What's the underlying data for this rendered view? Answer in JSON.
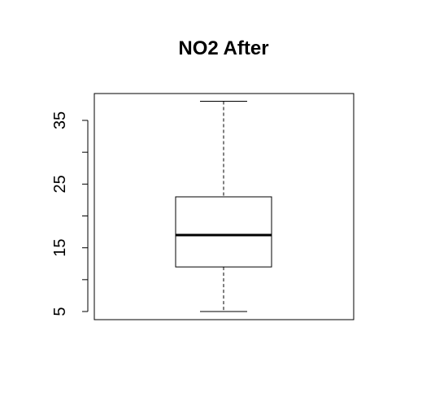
{
  "chart_data": {
    "type": "boxplot",
    "title": "NO2 After",
    "xlabel": "",
    "ylabel": "",
    "ylim": [
      4,
      39
    ],
    "yticks": [
      5,
      10,
      15,
      20,
      25,
      30,
      35
    ],
    "ytick_labels": [
      "5",
      "",
      "15",
      "",
      "25",
      "",
      "35"
    ],
    "box": {
      "min": 5,
      "q1": 12,
      "median": 17,
      "q3": 23,
      "max": 38
    },
    "grid": false,
    "colors": {
      "line": "#000000",
      "background": "#ffffff"
    }
  }
}
